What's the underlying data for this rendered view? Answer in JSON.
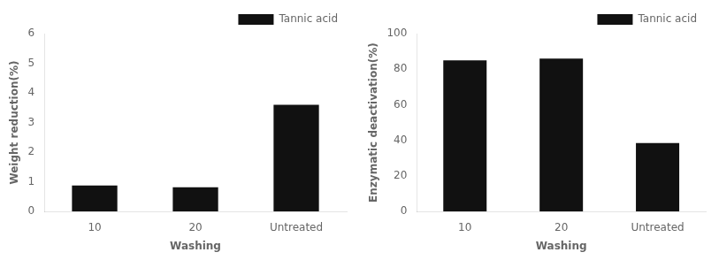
{
  "chart_data": [
    {
      "type": "bar",
      "categories": [
        "10",
        "20",
        "Untreated"
      ],
      "series": [
        {
          "name": "Tannic acid",
          "color": "#111111",
          "values": [
            0.88,
            0.82,
            3.6
          ]
        }
      ],
      "xlabel": "Washing",
      "ylabel": "Weight reduction(%)",
      "ylim": [
        0,
        6
      ],
      "yticks": [
        0,
        1,
        2,
        3,
        4,
        5,
        6
      ],
      "grid": false,
      "legend": "upper right"
    },
    {
      "type": "bar",
      "categories": [
        "10",
        "20",
        "Untreated"
      ],
      "series": [
        {
          "name": "Tannic acid",
          "color": "#111111",
          "values": [
            85.0,
            86.0,
            38.5
          ]
        }
      ],
      "xlabel": "Washing",
      "ylabel": "Enzymatic deactivation(%)",
      "ylim": [
        0,
        100
      ],
      "yticks": [
        0,
        20,
        40,
        60,
        80,
        100
      ],
      "grid": false,
      "legend": "upper right"
    }
  ]
}
